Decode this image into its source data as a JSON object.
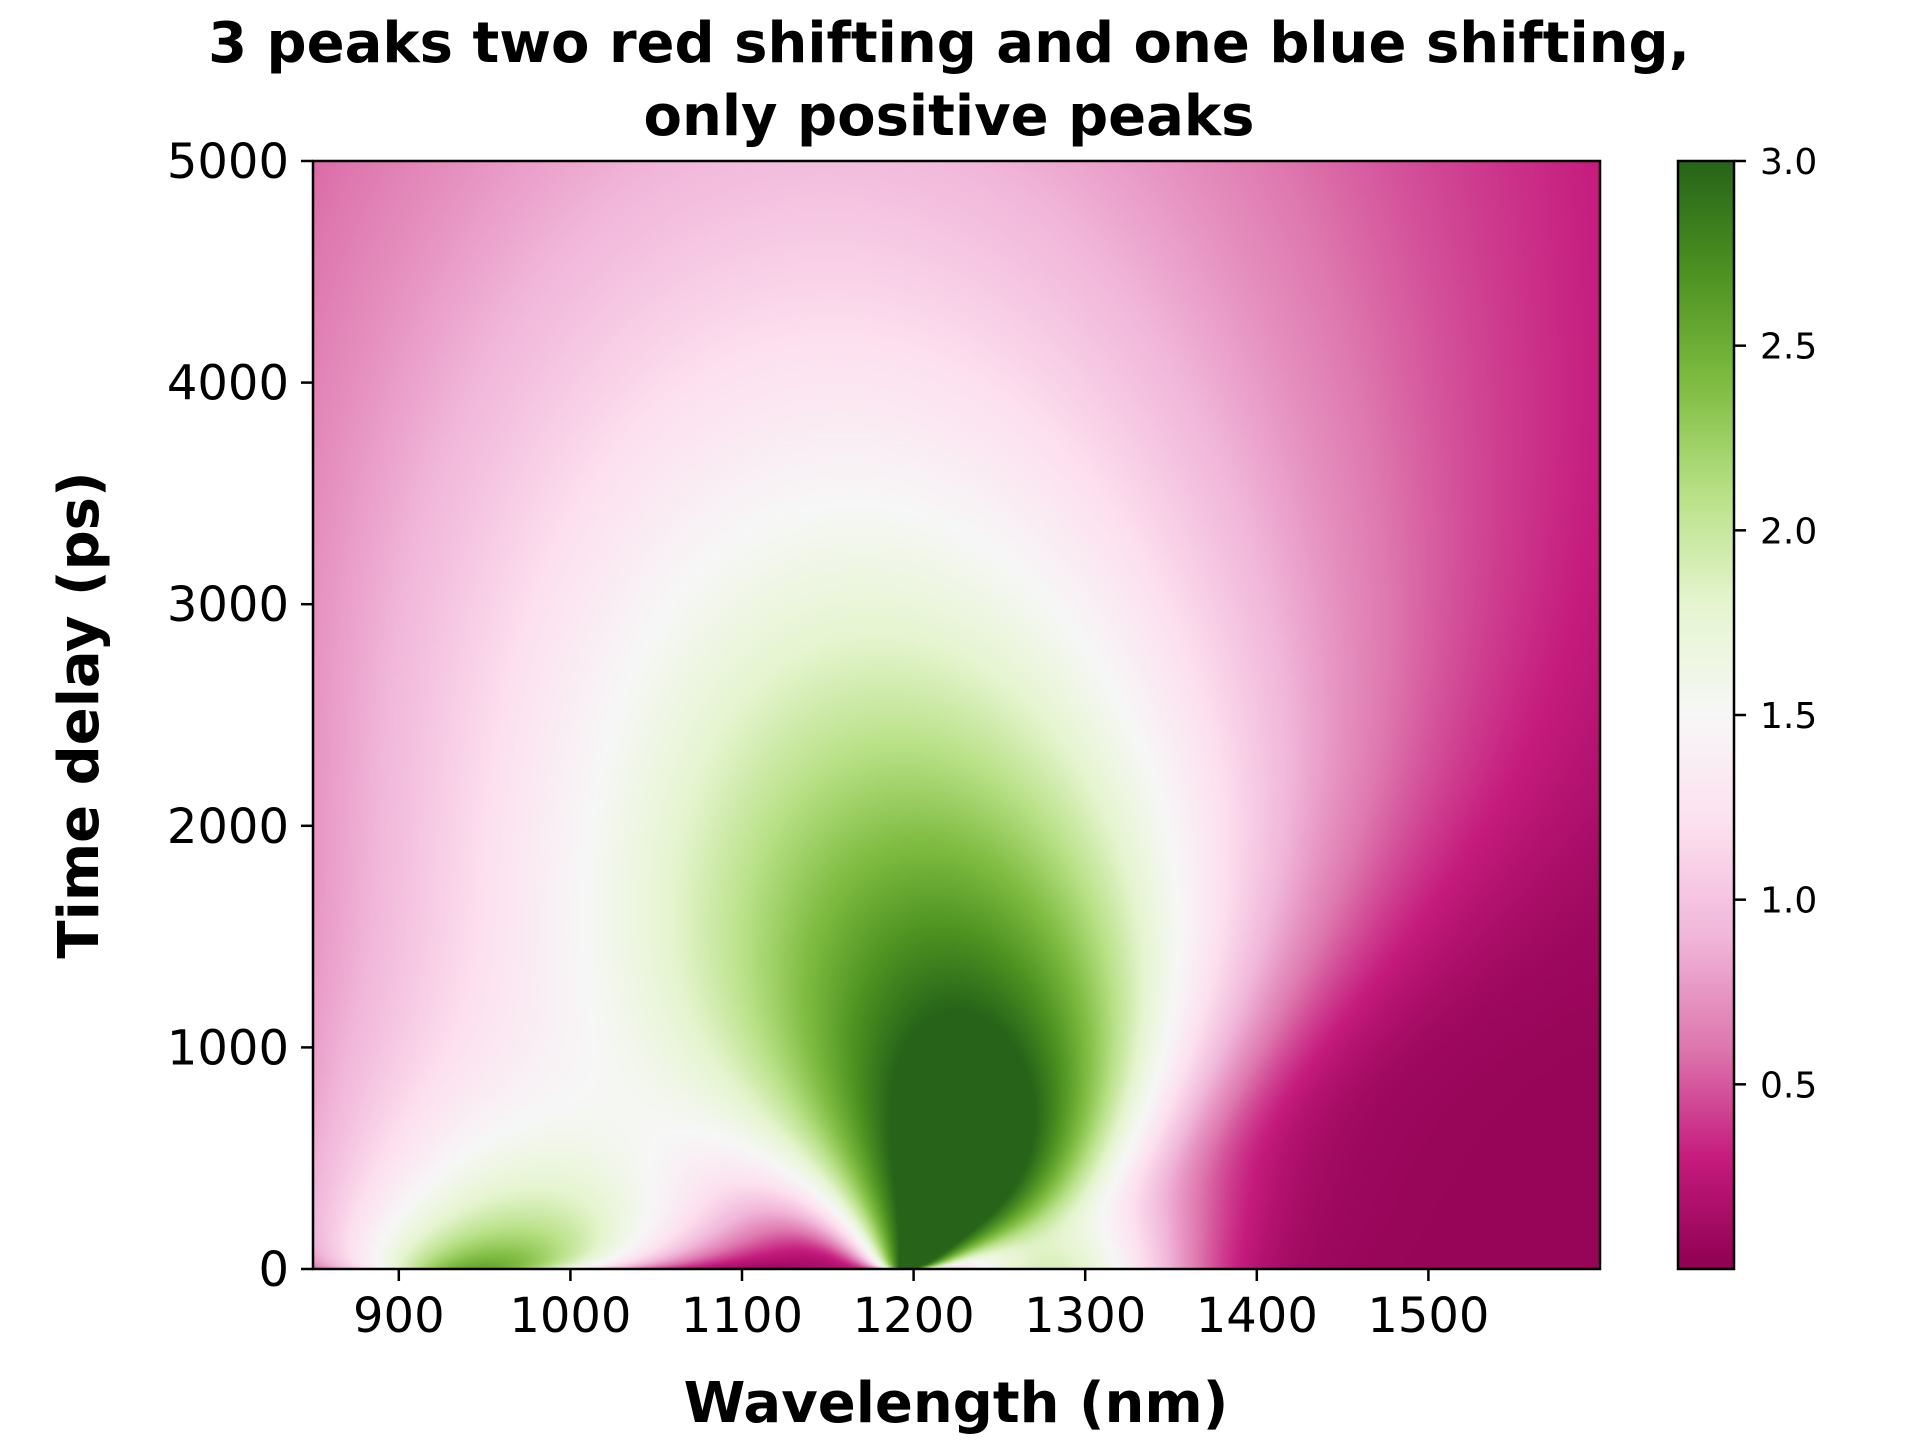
{
  "chart_data": {
    "type": "heatmap",
    "title": "3 peaks two red shifting and one blue shifting,\nonly positive peaks",
    "title_lines": [
      "3 peaks two red shifting and one blue shifting,",
      "only positive peaks"
    ],
    "xlabel": "Wavelength (nm)",
    "ylabel": "Time delay (ps)",
    "xlim": [
      850,
      1600
    ],
    "ylim": [
      0,
      5000
    ],
    "xticks": [
      900,
      1000,
      1100,
      1200,
      1300,
      1400,
      1500
    ],
    "xtick_labels": [
      "900",
      "1000",
      "1100",
      "1200",
      "1300",
      "1400",
      "1500"
    ],
    "yticks": [
      0,
      1000,
      2000,
      3000,
      4000,
      5000
    ],
    "ytick_labels": [
      "0",
      "1000",
      "2000",
      "3000",
      "4000",
      "5000"
    ],
    "colorbar": {
      "cmap": "PiYG",
      "vmin": 0.0,
      "vmax": 3.0,
      "ticks": [
        0.5,
        1.0,
        1.5,
        2.0,
        2.5,
        3.0
      ],
      "tick_labels": [
        "0.5",
        "1.0",
        "1.5",
        "2.0",
        "2.5",
        "3.0"
      ]
    },
    "grid": false,
    "peaks": [
      {
        "center_wavelength_at_t0": 945,
        "peak_value_at_t0": 3.0,
        "shift": "red"
      },
      {
        "center_wavelength_at_t0": 1195,
        "peak_value_at_t0": 2.8,
        "shift": "red"
      },
      {
        "center_wavelength_at_t0": 1280,
        "peak_value_at_t0": 1.9,
        "shift": "blue"
      }
    ],
    "colors": {
      "low": "#8e0152",
      "mid": "#f7f7f7",
      "high": "#276419"
    }
  }
}
